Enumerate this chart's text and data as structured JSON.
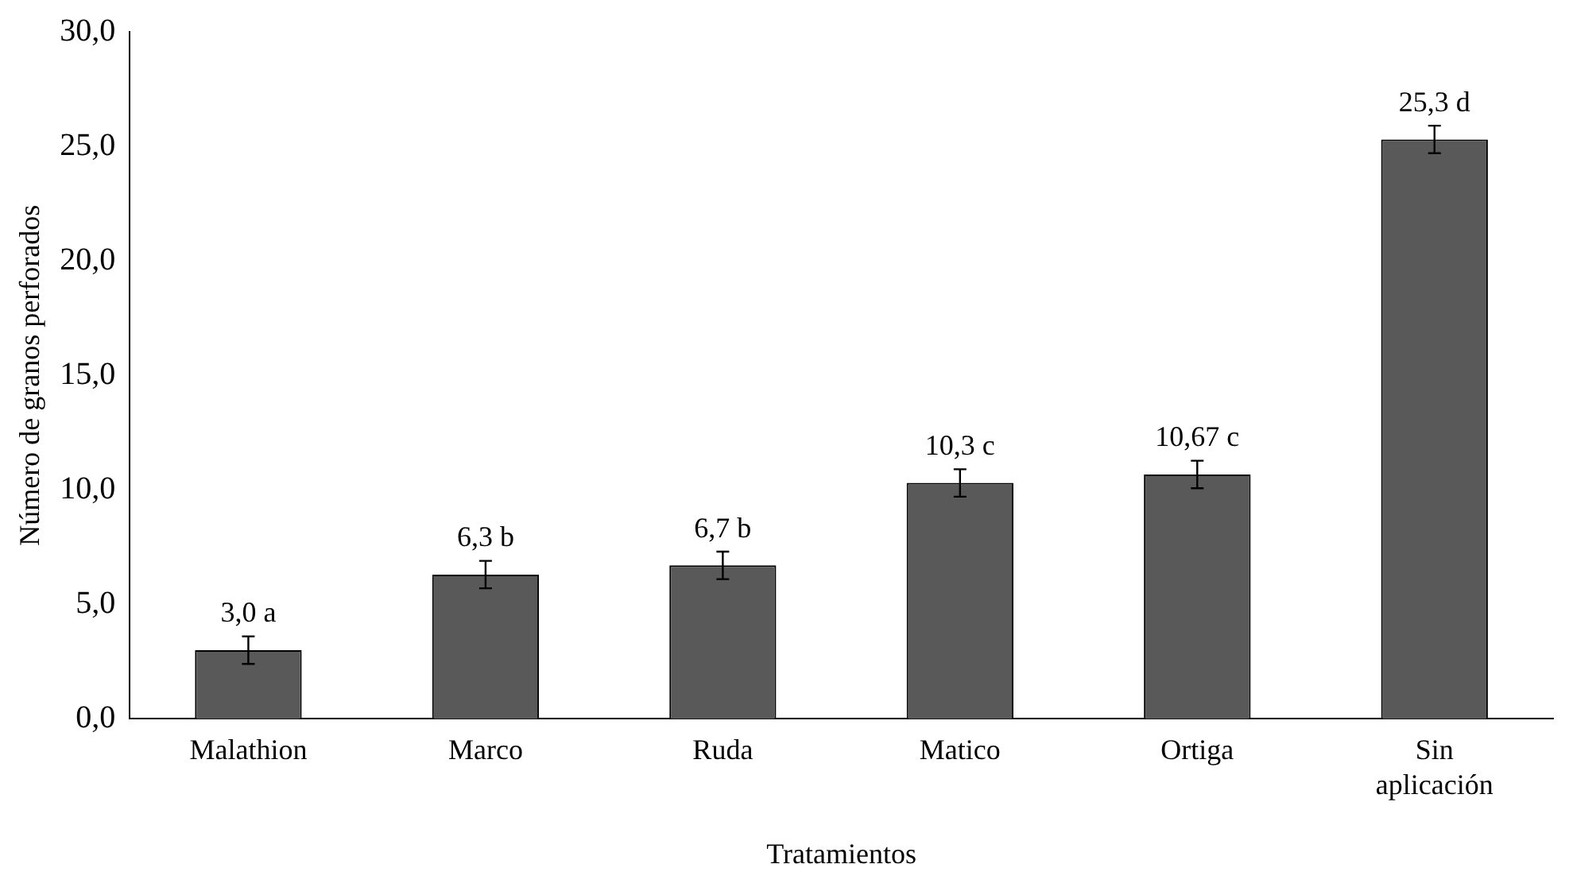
{
  "chart_data": {
    "type": "bar",
    "xlabel": "Tratamientos",
    "ylabel": "Número de granos perforados",
    "categories": [
      "Malathion",
      "Marco",
      "Ruda",
      "Matico",
      "Ortiga",
      "Sin aplicación"
    ],
    "values": [
      3.0,
      6.3,
      6.7,
      10.3,
      10.67,
      25.3
    ],
    "errors": [
      0.6,
      0.6,
      0.6,
      0.6,
      0.6,
      0.6
    ],
    "value_labels": [
      "3,0 a",
      "6,3 b",
      "6,7 b",
      "10,3 c",
      "10,67 c",
      "25,3 d"
    ],
    "color": "#595959",
    "ylim": [
      0,
      30
    ],
    "yticks": [
      {
        "value": 0,
        "label": "0,0"
      },
      {
        "value": 5,
        "label": "5,0"
      },
      {
        "value": 10,
        "label": "10,0"
      },
      {
        "value": 15,
        "label": "15,0"
      },
      {
        "value": 20,
        "label": "20,0"
      },
      {
        "value": 25,
        "label": "25,0"
      },
      {
        "value": 30,
        "label": "30,0"
      }
    ],
    "grid": false,
    "legend": false
  }
}
